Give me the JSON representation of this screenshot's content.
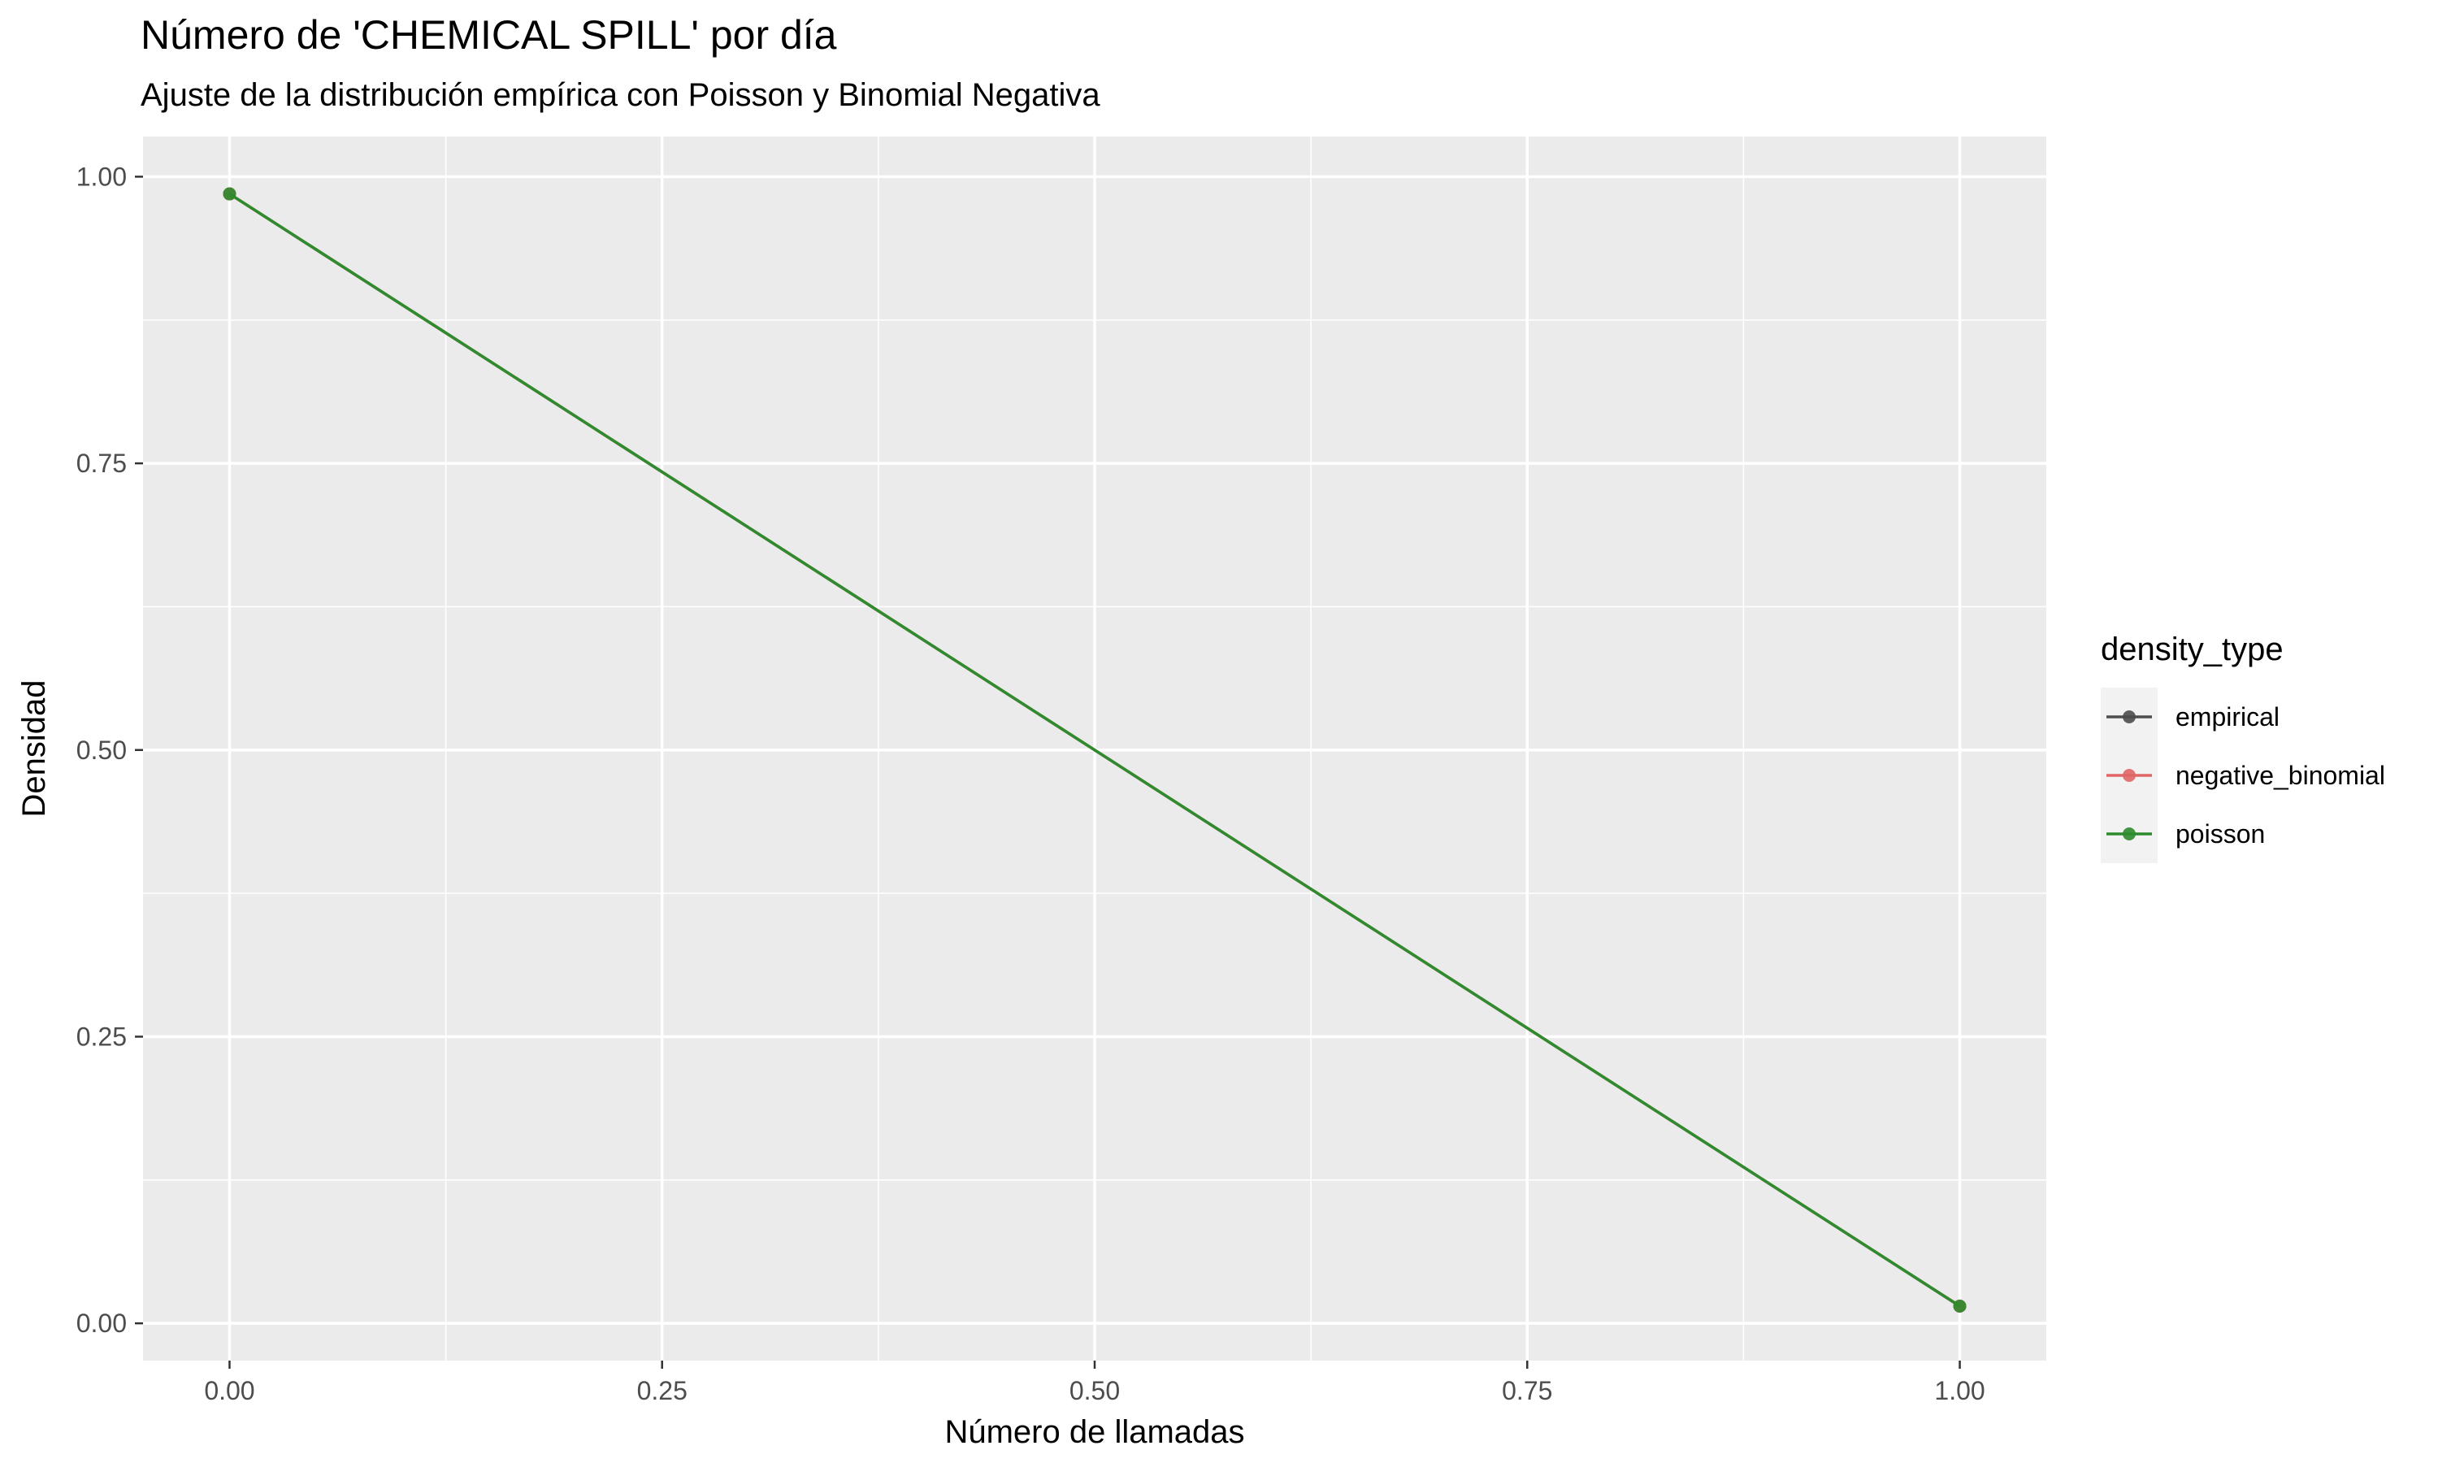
{
  "chart_data": {
    "type": "line",
    "title": "Número de 'CHEMICAL SPILL' por día",
    "subtitle": "Ajuste de la distribución empírica con Poisson y Binomial Negativa",
    "xlabel": "Número de llamadas",
    "ylabel": "Densidad",
    "xlim": [
      -0.05,
      1.05
    ],
    "ylim": [
      -0.0325,
      1.035
    ],
    "x_ticks": [
      "0.00",
      "0.25",
      "0.50",
      "0.75",
      "1.00"
    ],
    "y_ticks": [
      "0.00",
      "0.25",
      "0.50",
      "0.75",
      "1.00"
    ],
    "grid": true,
    "legend": {
      "title": "density_type",
      "position": "right"
    },
    "series": [
      {
        "name": "empirical",
        "color": "#4d4d4d",
        "x": [
          0,
          1
        ],
        "y": [
          0.985,
          0.015
        ]
      },
      {
        "name": "negative_binomial",
        "color": "#e06666",
        "x": [
          0,
          1
        ],
        "y": [
          0.985,
          0.015
        ]
      },
      {
        "name": "poisson",
        "color": "#2e8b2e",
        "x": [
          0,
          1
        ],
        "y": [
          0.985,
          0.015
        ]
      }
    ]
  }
}
